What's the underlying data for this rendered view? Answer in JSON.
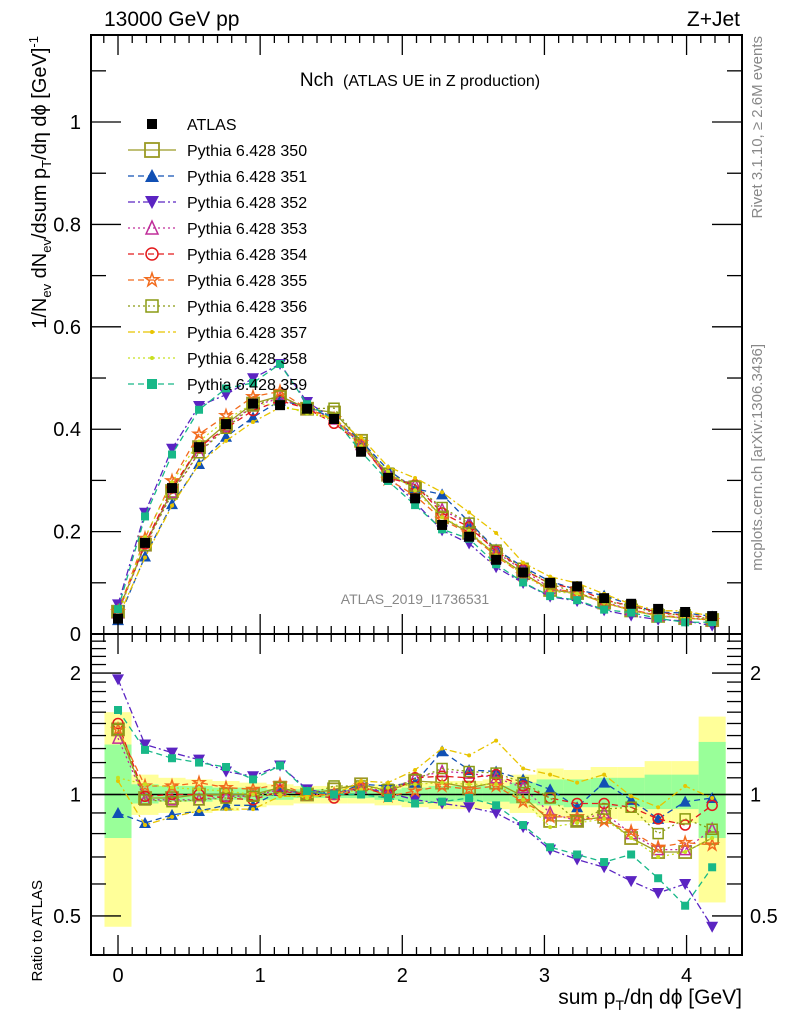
{
  "chart_data": [
    {
      "type": "scatter",
      "panel": "main",
      "top_left_label": "13000 GeV pp",
      "top_right_label": "Z+Jet",
      "title_main": "Nch",
      "title_sub": "(ATLAS UE in Z production)",
      "analysis_id": "ATLAS_2019_I1736531",
      "side_label_top": "Rivet 3.1.10, ≥ 2.6M events",
      "side_label_bottom": "mcplots.cern.ch [arXiv:1306.3436]",
      "ylabel": "1/N_ev dN_ev/dsum p_T/dη dϕ  [GeV]^-1",
      "xlabel": "sum p_T/dη dϕ [GeV]",
      "xlim": [
        -0.19,
        4.39
      ],
      "ylim": [
        0,
        1.17
      ],
      "xticks": [
        "0",
        "1",
        "2",
        "3",
        "4"
      ],
      "yticks": [
        "0",
        "0.2",
        "0.4",
        "0.6",
        "0.8",
        "1"
      ],
      "legend_position": "upper-left",
      "x": [
        0,
        0.19,
        0.38,
        0.57,
        0.76,
        0.95,
        1.14,
        1.33,
        1.52,
        1.71,
        1.9,
        2.09,
        2.28,
        2.47,
        2.66,
        2.85,
        3.04,
        3.23,
        3.42,
        3.61,
        3.8,
        3.99,
        4.18
      ],
      "data": {
        "name": "ATLAS",
        "values": [
          0.03,
          0.178,
          0.285,
          0.365,
          0.41,
          0.45,
          0.447,
          0.44,
          0.42,
          0.356,
          0.305,
          0.265,
          0.213,
          0.19,
          0.145,
          0.12,
          0.1,
          0.093,
          0.07,
          0.059,
          0.049,
          0.043,
          0.035
        ]
      },
      "series": [
        {
          "name": "Pythia 6.428 350",
          "color": "#9a9a24",
          "marker": "open-square",
          "line": "solid"
        },
        {
          "name": "Pythia 6.428 351",
          "color": "#1150b4",
          "marker": "triangle-up",
          "line": "dashed"
        },
        {
          "name": "Pythia 6.428 352",
          "color": "#5b24c2",
          "marker": "triangle-down",
          "line": "dashdot"
        },
        {
          "name": "Pythia 6.428 353",
          "color": "#c02e9a",
          "marker": "open-triangle-up",
          "line": "dotted"
        },
        {
          "name": "Pythia 6.428 354",
          "color": "#e31a1c",
          "marker": "open-circle",
          "line": "dashed"
        },
        {
          "name": "Pythia 6.428 355",
          "color": "#f26b1d",
          "marker": "open-star",
          "line": "dashed"
        },
        {
          "name": "Pythia 6.428 356",
          "color": "#8a9a12",
          "marker": "open-square-small",
          "line": "dotted"
        },
        {
          "name": "Pythia 6.428 357",
          "color": "#e8c400",
          "marker": "dot",
          "line": "dashdot"
        },
        {
          "name": "Pythia 6.428 358",
          "color": "#c8e020",
          "marker": "dot",
          "line": "dotted"
        },
        {
          "name": "Pythia 6.428 359",
          "color": "#18b888",
          "marker": "square",
          "line": "dashed"
        }
      ]
    },
    {
      "type": "scatter",
      "panel": "ratio",
      "ylabel": "Ratio to ATLAS",
      "yscale": "log",
      "ylim": [
        0.4,
        2.5
      ],
      "yticks": [
        "0.5",
        "1",
        "2"
      ],
      "xlim": [
        -0.19,
        4.39
      ],
      "x": [
        0,
        0.19,
        0.38,
        0.57,
        0.76,
        0.95,
        1.14,
        1.33,
        1.52,
        1.71,
        1.9,
        2.09,
        2.28,
        2.47,
        2.66,
        2.85,
        3.04,
        3.23,
        3.42,
        3.61,
        3.8,
        3.99,
        4.18
      ],
      "band_outer": {
        "color": "#ffff99",
        "low": [
          0.47,
          0.89,
          0.9,
          0.9,
          0.91,
          0.93,
          0.94,
          0.95,
          0.95,
          0.95,
          0.94,
          0.93,
          0.92,
          0.92,
          0.92,
          0.9,
          0.88,
          0.87,
          0.87,
          0.86,
          0.85,
          0.85,
          0.54
        ],
        "high": [
          1.6,
          1.12,
          1.1,
          1.09,
          1.08,
          1.07,
          1.06,
          1.05,
          1.05,
          1.05,
          1.06,
          1.07,
          1.08,
          1.08,
          1.09,
          1.12,
          1.16,
          1.15,
          1.17,
          1.17,
          1.21,
          1.21,
          1.56
        ]
      },
      "band_inner": {
        "color": "#99ff99",
        "low": [
          0.78,
          0.95,
          0.96,
          0.96,
          0.97,
          0.97,
          0.97,
          0.98,
          0.98,
          0.98,
          0.97,
          0.96,
          0.96,
          0.96,
          0.96,
          0.95,
          0.94,
          0.93,
          0.93,
          0.93,
          0.92,
          0.92,
          0.78
        ],
        "high": [
          1.33,
          1.06,
          1.05,
          1.05,
          1.04,
          1.04,
          1.03,
          1.03,
          1.03,
          1.03,
          1.03,
          1.04,
          1.05,
          1.05,
          1.05,
          1.07,
          1.09,
          1.09,
          1.1,
          1.1,
          1.12,
          1.12,
          1.35
        ]
      },
      "series": [
        {
          "name": "Pythia 6.428 350",
          "values": [
            1.45,
            0.98,
            0.98,
            1.0,
            1.0,
            1.0,
            1.04,
            1.0,
            1.03,
            1.06,
            1.02,
            1.08,
            1.07,
            1.04,
            1.07,
            0.99,
            0.86,
            0.86,
            0.88,
            0.78,
            0.72,
            0.72,
            0.78
          ]
        },
        {
          "name": "Pythia 6.428 351",
          "values": [
            0.9,
            0.85,
            0.89,
            0.91,
            0.94,
            0.94,
            1.02,
            1.01,
            1.0,
            1.06,
            1.05,
            1.07,
            1.28,
            1.15,
            1.14,
            1.09,
            1.03,
            0.93,
            1.07,
            0.97,
            0.87,
            0.96,
            0.98
          ]
        },
        {
          "name": "Pythia 6.428 352",
          "values": [
            1.93,
            1.33,
            1.27,
            1.22,
            1.14,
            1.11,
            1.18,
            1.03,
            1.0,
            1.04,
            1.01,
            0.97,
            0.95,
            0.93,
            0.9,
            0.83,
            0.73,
            0.69,
            0.66,
            0.61,
            0.57,
            0.6,
            0.47
          ]
        },
        {
          "name": "Pythia 6.428 353",
          "values": [
            1.38,
            0.97,
            0.97,
            0.97,
            0.99,
            0.99,
            1.03,
            1.0,
            1.0,
            1.04,
            1.02,
            1.1,
            1.14,
            1.13,
            1.1,
            1.04,
            0.9,
            0.86,
            0.9,
            0.8,
            0.73,
            0.73,
            0.82
          ]
        },
        {
          "name": "Pythia 6.428 354",
          "values": [
            1.5,
            0.99,
            1.0,
            1.0,
            0.98,
            0.97,
            1.02,
            1.0,
            0.98,
            1.04,
            1.0,
            1.1,
            1.11,
            1.1,
            1.12,
            1.05,
            0.98,
            0.95,
            0.95,
            0.93,
            0.87,
            0.84,
            0.94
          ]
        },
        {
          "name": "Pythia 6.428 355",
          "values": [
            1.45,
            1.05,
            1.05,
            1.07,
            1.04,
            1.03,
            1.06,
            1.0,
            1.0,
            1.05,
            0.99,
            1.02,
            1.05,
            1.03,
            1.05,
            0.96,
            0.88,
            0.88,
            0.86,
            0.81,
            0.74,
            0.76,
            0.75
          ]
        },
        {
          "name": "Pythia 6.428 356",
          "values": [
            1.45,
            0.97,
            0.96,
            0.97,
            0.98,
            0.99,
            1.04,
            1.0,
            1.05,
            1.05,
            1.03,
            1.09,
            1.16,
            1.14,
            1.13,
            1.07,
            0.98,
            0.86,
            0.92,
            0.93,
            0.8,
            0.87,
            0.82
          ]
        },
        {
          "name": "Pythia 6.428 357",
          "values": [
            1.08,
            0.84,
            0.88,
            0.91,
            0.92,
            0.92,
            0.99,
            0.99,
            1.0,
            1.08,
            1.07,
            1.15,
            1.3,
            1.25,
            1.36,
            1.16,
            1.12,
            1.07,
            1.12,
            0.99,
            0.93,
            1.05,
            0.98
          ]
        },
        {
          "name": "Pythia 6.428 358",
          "values": [
            1.1,
            1.06,
            1.04,
            1.03,
            1.02,
            1.0,
            1.0,
            0.98,
            1.0,
            1.03,
            1.04,
            1.06,
            1.07,
            1.06,
            1.06,
            0.97,
            0.83,
            0.85,
            0.87,
            0.78,
            0.7,
            0.72,
            0.78
          ]
        },
        {
          "name": "Pythia 6.428 359",
          "values": [
            1.62,
            1.29,
            1.23,
            1.2,
            1.17,
            1.09,
            1.18,
            1.02,
            1.0,
            1.0,
            0.98,
            0.95,
            0.96,
            0.98,
            0.94,
            0.84,
            0.74,
            0.71,
            0.68,
            0.71,
            0.62,
            0.53,
            0.66
          ]
        }
      ]
    }
  ]
}
